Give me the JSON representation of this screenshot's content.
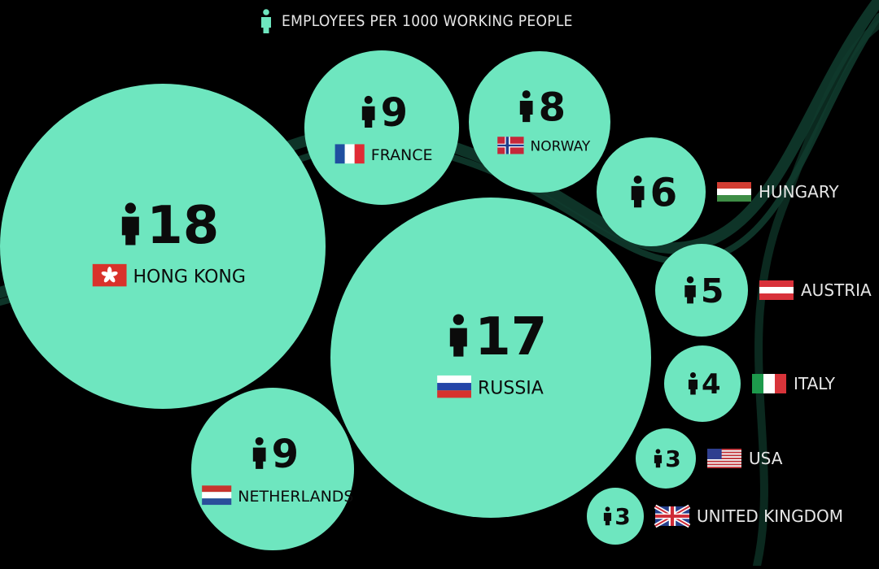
{
  "legend": {
    "icon": "person-icon",
    "label": "EMPLOYEES PER 1000 WORKING PEOPLE"
  },
  "colors": {
    "background": "#000000",
    "bubble": "#6ee6bf",
    "ribbon": "#0f3a2c",
    "text_dark": "#0b0b0b",
    "text_light": "#e6e6e6"
  },
  "chart_data": {
    "type": "bubble",
    "unit": "EMPLOYEES PER 1000 WORKING PEOPLE",
    "items": [
      {
        "country": "HONG KONG",
        "value": 18,
        "flag": "hong-kong"
      },
      {
        "country": "RUSSIA",
        "value": 17,
        "flag": "russia"
      },
      {
        "country": "FRANCE",
        "value": 9,
        "flag": "france"
      },
      {
        "country": "NETHERLANDS",
        "value": 9,
        "flag": "netherlands"
      },
      {
        "country": "NORWAY",
        "value": 8,
        "flag": "norway"
      },
      {
        "country": "HUNGARY",
        "value": 6,
        "flag": "hungary"
      },
      {
        "country": "AUSTRIA",
        "value": 5,
        "flag": "austria"
      },
      {
        "country": "ITALY",
        "value": 4,
        "flag": "italy"
      },
      {
        "country": "USA",
        "value": 3,
        "flag": "usa"
      },
      {
        "country": "UNITED KINGDOM",
        "value": 3,
        "flag": "united-kingdom"
      }
    ]
  }
}
